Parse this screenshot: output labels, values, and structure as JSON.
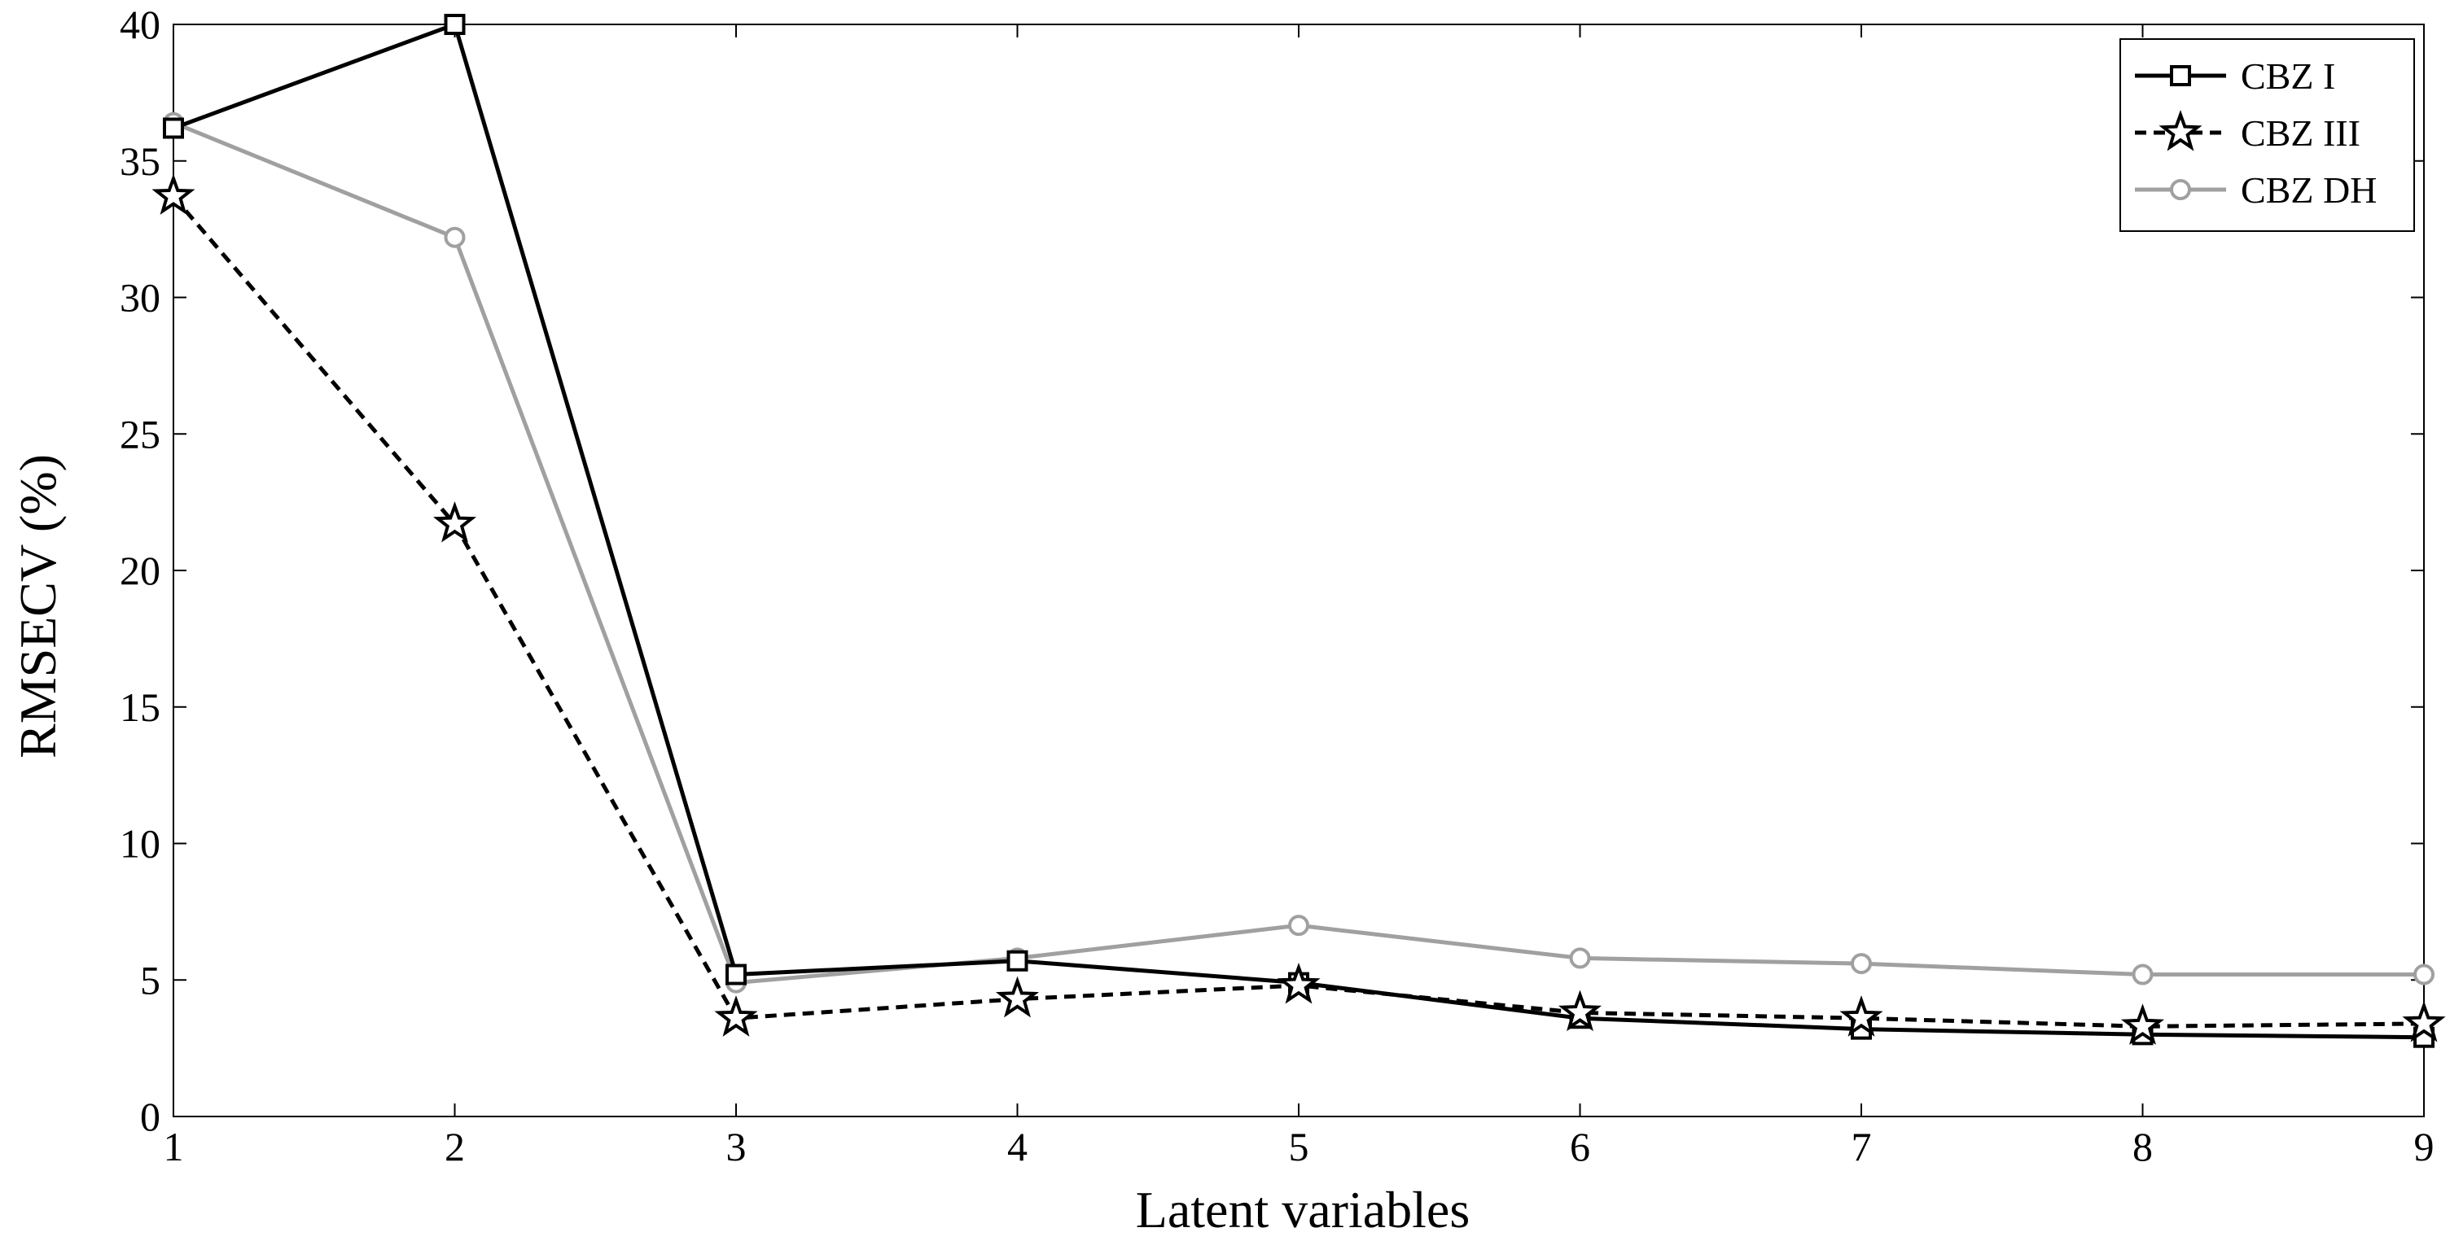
{
  "chart_data": {
    "type": "line",
    "xlabel": "Latent variables",
    "ylabel": "RMSECV (%)",
    "xlim": [
      1,
      9
    ],
    "ylim": [
      0,
      40
    ],
    "xticks": [
      1,
      2,
      3,
      4,
      5,
      6,
      7,
      8,
      9
    ],
    "yticks": [
      0,
      5,
      10,
      15,
      20,
      25,
      30,
      35,
      40
    ],
    "grid": false,
    "legend_position": "top-right",
    "x": [
      1,
      2,
      3,
      4,
      5,
      6,
      7,
      8,
      9
    ],
    "series": [
      {
        "name": "CBZ I",
        "values": [
          36.2,
          40.0,
          5.2,
          5.7,
          4.9,
          3.6,
          3.2,
          3.0,
          2.9
        ],
        "color": "#000000",
        "dash": "solid",
        "marker": "square"
      },
      {
        "name": "CBZ III",
        "values": [
          33.7,
          21.7,
          3.6,
          4.3,
          4.8,
          3.8,
          3.6,
          3.3,
          3.4
        ],
        "color": "#000000",
        "dash": "dashed",
        "marker": "star"
      },
      {
        "name": "CBZ DH",
        "values": [
          36.4,
          32.2,
          4.9,
          5.8,
          7.0,
          5.8,
          5.6,
          5.2,
          5.2
        ],
        "color": "#a0a0a0",
        "dash": "solid",
        "marker": "circle"
      }
    ]
  }
}
